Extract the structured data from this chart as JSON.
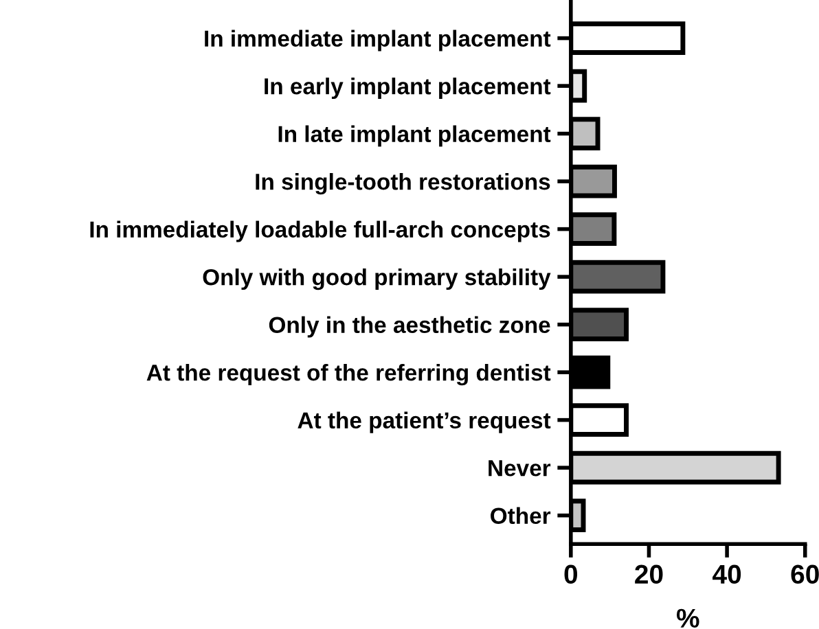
{
  "chart_data": {
    "type": "bar",
    "orientation": "horizontal",
    "xlabel": "%",
    "categories": [
      "In immediate implant placement",
      "In early implant placement",
      "In late implant placement",
      "In single-tooth restorations",
      "In immediately loadable full-arch concepts",
      "Only with good primary stability",
      "Only in the aesthetic zone",
      "At the request of the referring dentist",
      "At the patient’s request",
      "Never",
      "Other"
    ],
    "values": [
      28.7,
      3.5,
      6.9,
      11.2,
      11.1,
      23.6,
      14.2,
      9.5,
      14.2,
      53.2,
      3.2
    ],
    "colors": [
      "#ffffff",
      "#e6e6e6",
      "#bfbfbf",
      "#999999",
      "#7f7f7f",
      "#606060",
      "#505050",
      "#000000",
      "#ffffff",
      "#d4d4d4",
      "#c4c4c4"
    ],
    "xlim": [
      0,
      60
    ],
    "xticks": [
      0,
      20,
      40,
      60
    ],
    "grid": false,
    "legend": false
  }
}
